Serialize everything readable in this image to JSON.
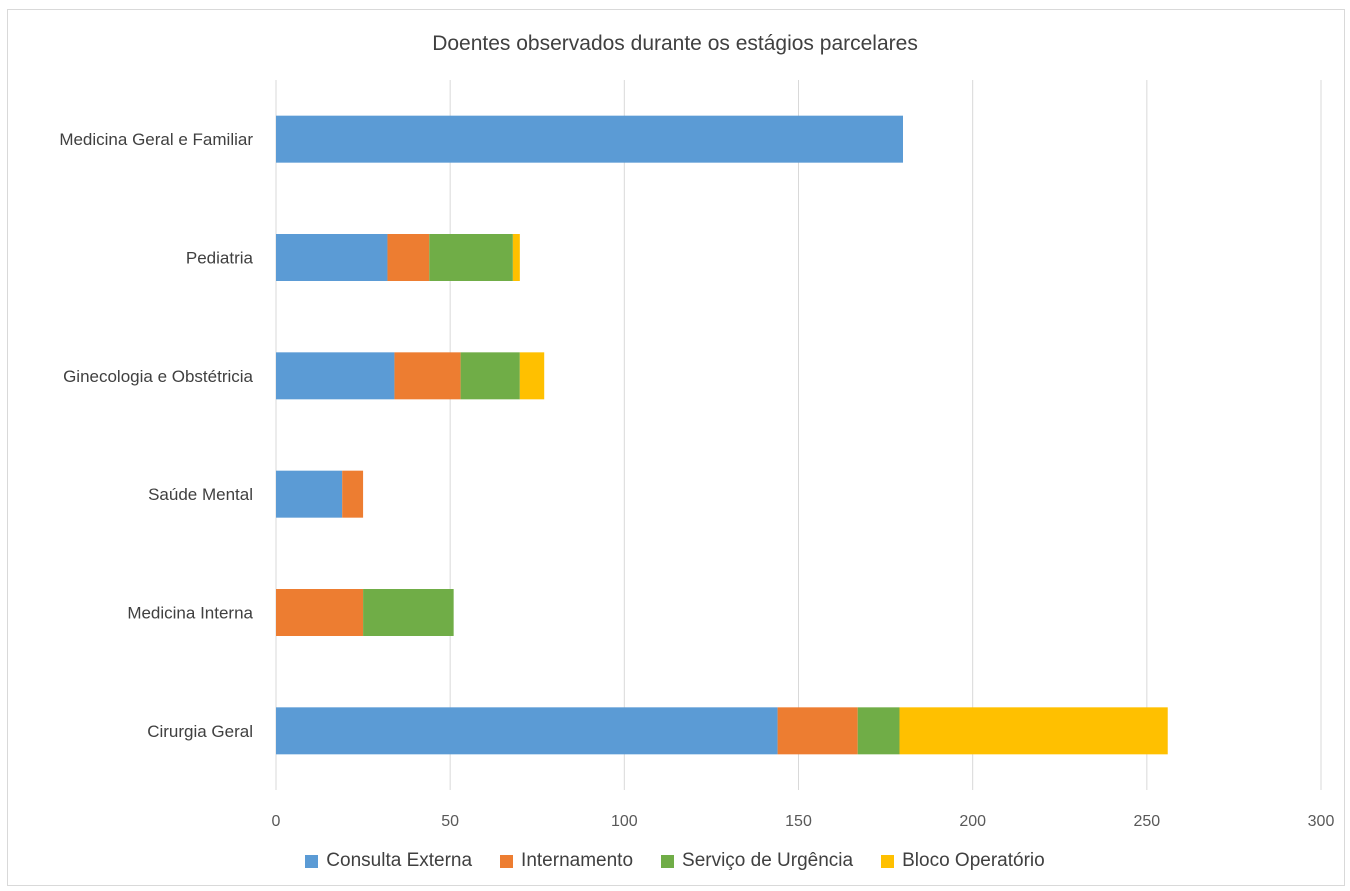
{
  "chart_data": {
    "type": "bar",
    "orientation": "horizontal",
    "stacked": true,
    "title": "Doentes observados durante os estágios parcelares",
    "categories": [
      "Medicina Geral e Familiar",
      "Pediatria",
      "Ginecologia e Obstétricia",
      "Saúde Mental",
      "Medicina Interna",
      "Cirurgia Geral"
    ],
    "series": [
      {
        "name": "Consulta Externa",
        "color": "#5b9bd5",
        "values": [
          180,
          32,
          34,
          19,
          0,
          144
        ]
      },
      {
        "name": "Internamento",
        "color": "#ed7d31",
        "values": [
          0,
          12,
          19,
          6,
          25,
          23
        ]
      },
      {
        "name": "Serviço de Urgência",
        "color": "#70ad47",
        "values": [
          0,
          24,
          17,
          0,
          26,
          12
        ]
      },
      {
        "name": "Bloco Operatório",
        "color": "#ffc000",
        "values": [
          0,
          2,
          7,
          0,
          0,
          77
        ]
      }
    ],
    "xlim": [
      0,
      300
    ],
    "xticks": [
      "0",
      "50",
      "100",
      "150",
      "200",
      "250",
      "300"
    ],
    "grid": true,
    "legend_position": "bottom"
  }
}
